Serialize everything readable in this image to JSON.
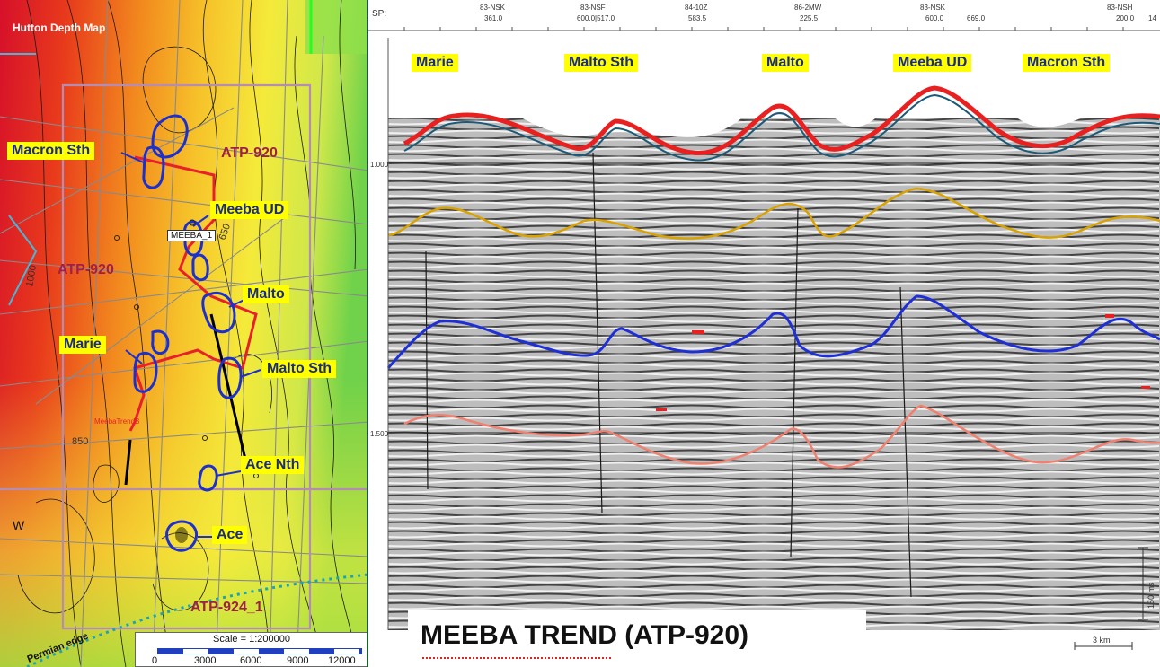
{
  "map": {
    "title": "Hutton Depth Map",
    "atp_labels": [
      "ATP-920",
      "ATP-920",
      "ATP-924_1"
    ],
    "well_tag": "MEEBA_1",
    "trend_label": "MeebaTrendB",
    "contour_labels": [
      "850",
      "650",
      "1000"
    ],
    "edge_label": "Permian edge",
    "side_letter": "W",
    "prospects": [
      "Macron Sth",
      "Meeba UD",
      "Malto",
      "Marie",
      "Malto Sth",
      "Ace Nth",
      "Ace"
    ],
    "scale_text": "Scale = 1:200000",
    "scale_ticks": [
      "0",
      "3000",
      "6000",
      "9000",
      "12000"
    ]
  },
  "seismic": {
    "sp_label": "SP:",
    "line_names": [
      "83-NSK",
      "83-NSF",
      "84-10Z",
      "86-2MW",
      "83-NSK",
      "83-NSH"
    ],
    "sp_values": [
      "361.0",
      "600.0|517.0",
      "583.5",
      "225.5",
      "600.0",
      "669.0",
      "200.0",
      "14"
    ],
    "time_labels": [
      "1.000",
      "1.500"
    ],
    "prospects": [
      "Marie",
      "Malto Sth",
      "Malto",
      "Meeba UD",
      "Macron Sth"
    ],
    "vertical_scale": "150 ms",
    "horizontal_scale": "3 km"
  },
  "title": "MEEBA TREND (ATP-920)",
  "colors": {
    "label_bg": "#ffff00",
    "label_text": "#1b2b8c",
    "horizon_red": "#e82020",
    "horizon_orange": "#d9a200",
    "horizon_blue": "#1f2fd6",
    "horizon_salmon": "#f08070",
    "outline_red": "#e8202c",
    "prospect_blue": "#1c2fd0"
  }
}
